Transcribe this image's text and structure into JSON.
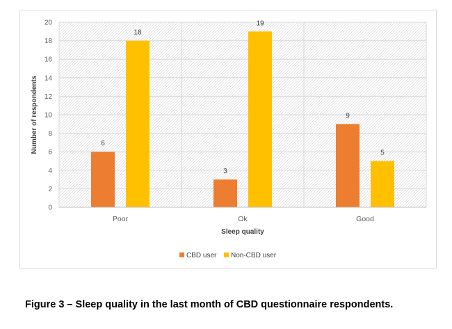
{
  "chart_data": {
    "type": "bar",
    "title": "",
    "categories": [
      "Poor",
      "Ok",
      "Good"
    ],
    "series": [
      {
        "name": "CBD user",
        "values": [
          6,
          3,
          9
        ],
        "color": "#ed7d31"
      },
      {
        "name": "Non-CBD user",
        "values": [
          18,
          19,
          5
        ],
        "color": "#ffc000"
      }
    ],
    "xlabel": "Sleep quality",
    "ylabel": "Number of respondents",
    "ylim": [
      0,
      20
    ],
    "yticks": [
      "0",
      "2",
      "4",
      "6",
      "8",
      "10",
      "12",
      "14",
      "16",
      "18",
      "20"
    ],
    "legend_position": "bottom",
    "grid": true
  },
  "caption": "Figure 3 – Sleep quality in the last month of CBD questionnaire respondents."
}
